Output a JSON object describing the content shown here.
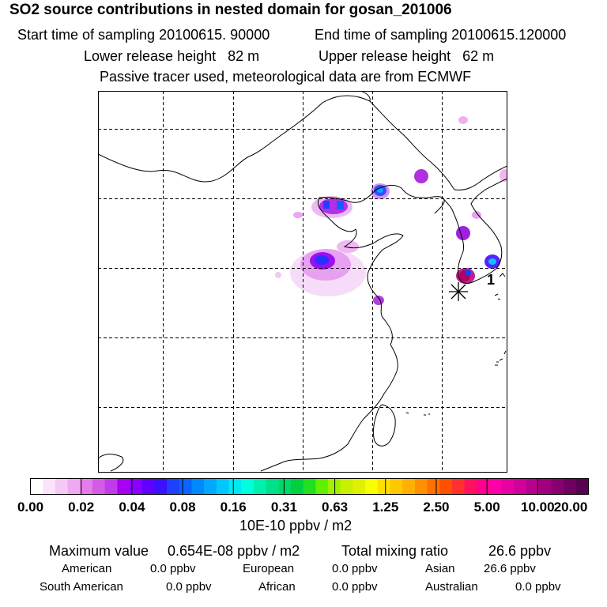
{
  "header": {
    "title": "SO2 source contributions in nested domain for gosan_201006",
    "start_time": "Start time of sampling 20100615. 90000",
    "end_time": "End time of sampling 20100615.120000",
    "lower_height": "Lower release height   82 m",
    "upper_height": "Upper release height   62 m",
    "tracer_note": "Passive tracer used, meteorological data are from ECMWF"
  },
  "map": {
    "receptor_label": "1",
    "receptor_marker": "asterisk-icon"
  },
  "colorbar": {
    "ticks": [
      "0.00",
      "0.02",
      "0.04",
      "0.08",
      "0.16",
      "0.31",
      "0.63",
      "1.25",
      "2.50",
      "5.00",
      "10.00",
      "20.00"
    ],
    "units": "10E-10 ppbv / m2",
    "colors": [
      "#ffffff",
      "#fbe4fb",
      "#f6c8f6",
      "#f0a8f0",
      "#e57de8",
      "#d35be6",
      "#c13ce8",
      "#a800f5",
      "#8a00ff",
      "#6000ff",
      "#3a10ff",
      "#2040ff",
      "#0a64ff",
      "#0088ff",
      "#00a8ff",
      "#00c8ff",
      "#00e8f0",
      "#00ffe0",
      "#00f0b0",
      "#00e08a",
      "#00d868",
      "#00d040",
      "#20e020",
      "#60f000",
      "#a0f000",
      "#c8f000",
      "#e0f000",
      "#f8ff00",
      "#ffe000",
      "#ffc800",
      "#ffb000",
      "#ff9000",
      "#ff7000",
      "#ff5000",
      "#ff3030",
      "#ff1060",
      "#ff0090",
      "#ff00a8",
      "#e800a0",
      "#d0009a",
      "#b8008e",
      "#a00080",
      "#880070",
      "#700060",
      "#5a0050"
    ]
  },
  "stats": {
    "max_label": "Maximum value",
    "max_value": "0.654E-08 ppbv / m2",
    "total_label": "Total mixing ratio",
    "total_value": "26.6 ppbv"
  },
  "sources": [
    {
      "name": "American",
      "value": "0.0 ppbv"
    },
    {
      "name": "European",
      "value": "0.0 ppbv"
    },
    {
      "name": "Asian",
      "value": "26.6 ppbv"
    },
    {
      "name": "South American",
      "value": "0.0 ppbv"
    },
    {
      "name": "African",
      "value": "0.0 ppbv"
    },
    {
      "name": "Australian",
      "value": "0.0 ppbv"
    }
  ]
}
